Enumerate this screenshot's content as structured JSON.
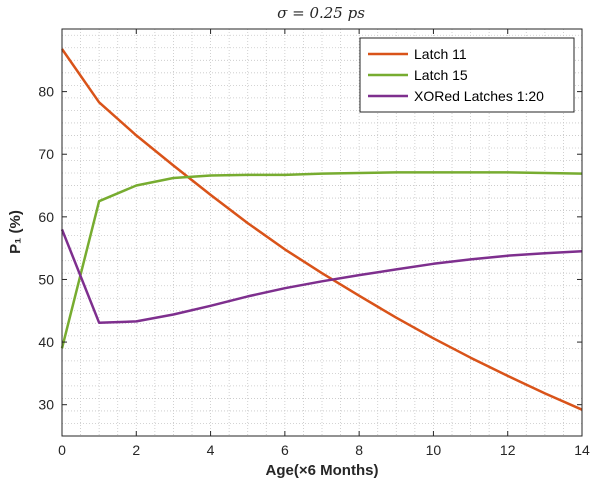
{
  "chart_data": {
    "type": "line",
    "title": "σ = 0.25 ps",
    "xlabel": "Age(×6 Months)",
    "ylabel": "P₁ (%)",
    "xlim": [
      0,
      14
    ],
    "ylim": [
      25,
      90
    ],
    "xticks": [
      0,
      2,
      4,
      6,
      8,
      10,
      12,
      14
    ],
    "yticks": [
      30,
      40,
      50,
      60,
      70,
      80
    ],
    "grid": "minor-dotted",
    "legend_position": "top-right",
    "x": [
      0,
      1,
      2,
      3,
      4,
      5,
      6,
      7,
      8,
      9,
      10,
      11,
      12,
      13,
      14
    ],
    "series": [
      {
        "name": "Latch 11",
        "color": "#D95319",
        "values": [
          86.8,
          78.3,
          73.0,
          68.2,
          63.5,
          59.0,
          54.8,
          51.0,
          47.4,
          43.9,
          40.6,
          37.5,
          34.6,
          31.8,
          29.2
        ]
      },
      {
        "name": "Latch 15",
        "color": "#77AC30",
        "values": [
          39.0,
          62.5,
          65.0,
          66.2,
          66.6,
          66.7,
          66.7,
          66.9,
          67.0,
          67.1,
          67.1,
          67.1,
          67.1,
          67.0,
          66.9
        ]
      },
      {
        "name": "XORed Latches 1:20",
        "color": "#7E2F8E",
        "values": [
          58.0,
          43.1,
          43.3,
          44.4,
          45.8,
          47.3,
          48.6,
          49.7,
          50.7,
          51.6,
          52.5,
          53.2,
          53.8,
          54.2,
          54.5
        ]
      }
    ]
  }
}
